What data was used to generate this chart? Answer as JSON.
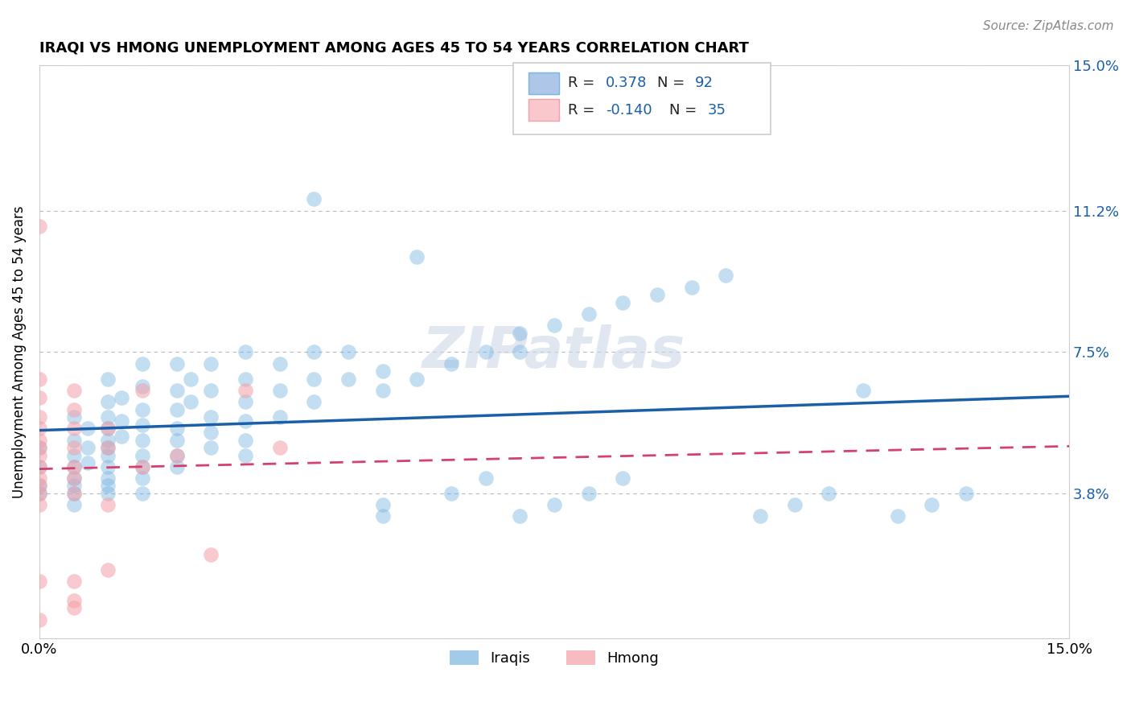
{
  "title": "IRAQI VS HMONG UNEMPLOYMENT AMONG AGES 45 TO 54 YEARS CORRELATION CHART",
  "source": "Source: ZipAtlas.com",
  "ylabel": "Unemployment Among Ages 45 to 54 years",
  "xlim": [
    0.0,
    0.15
  ],
  "ylim": [
    0.0,
    0.15
  ],
  "ytick_values": [
    0.038,
    0.075,
    0.112,
    0.15
  ],
  "ytick_labels": [
    "3.8%",
    "7.5%",
    "11.2%",
    "15.0%"
  ],
  "iraqis_color": "#7ab5e0",
  "hmong_color": "#f4a0a8",
  "iraqis_line_color": "#1a5fa8",
  "hmong_line_color": "#d44070",
  "iraqi_points": [
    [
      0.0,
      0.05
    ],
    [
      0.0,
      0.045
    ],
    [
      0.0,
      0.04
    ],
    [
      0.0,
      0.038
    ],
    [
      0.005,
      0.058
    ],
    [
      0.005,
      0.052
    ],
    [
      0.005,
      0.048
    ],
    [
      0.005,
      0.045
    ],
    [
      0.005,
      0.042
    ],
    [
      0.005,
      0.04
    ],
    [
      0.005,
      0.038
    ],
    [
      0.005,
      0.035
    ],
    [
      0.007,
      0.055
    ],
    [
      0.007,
      0.05
    ],
    [
      0.007,
      0.046
    ],
    [
      0.01,
      0.068
    ],
    [
      0.01,
      0.062
    ],
    [
      0.01,
      0.058
    ],
    [
      0.01,
      0.055
    ],
    [
      0.01,
      0.052
    ],
    [
      0.01,
      0.05
    ],
    [
      0.01,
      0.048
    ],
    [
      0.01,
      0.045
    ],
    [
      0.01,
      0.042
    ],
    [
      0.01,
      0.04
    ],
    [
      0.01,
      0.038
    ],
    [
      0.012,
      0.063
    ],
    [
      0.012,
      0.057
    ],
    [
      0.012,
      0.053
    ],
    [
      0.015,
      0.072
    ],
    [
      0.015,
      0.066
    ],
    [
      0.015,
      0.06
    ],
    [
      0.015,
      0.056
    ],
    [
      0.015,
      0.052
    ],
    [
      0.015,
      0.048
    ],
    [
      0.015,
      0.045
    ],
    [
      0.015,
      0.042
    ],
    [
      0.015,
      0.038
    ],
    [
      0.02,
      0.072
    ],
    [
      0.02,
      0.065
    ],
    [
      0.02,
      0.06
    ],
    [
      0.02,
      0.055
    ],
    [
      0.02,
      0.052
    ],
    [
      0.02,
      0.048
    ],
    [
      0.02,
      0.045
    ],
    [
      0.022,
      0.068
    ],
    [
      0.022,
      0.062
    ],
    [
      0.025,
      0.072
    ],
    [
      0.025,
      0.065
    ],
    [
      0.025,
      0.058
    ],
    [
      0.025,
      0.054
    ],
    [
      0.025,
      0.05
    ],
    [
      0.03,
      0.075
    ],
    [
      0.03,
      0.068
    ],
    [
      0.03,
      0.062
    ],
    [
      0.03,
      0.057
    ],
    [
      0.03,
      0.052
    ],
    [
      0.03,
      0.048
    ],
    [
      0.035,
      0.072
    ],
    [
      0.035,
      0.065
    ],
    [
      0.035,
      0.058
    ],
    [
      0.04,
      0.075
    ],
    [
      0.04,
      0.068
    ],
    [
      0.04,
      0.062
    ],
    [
      0.04,
      0.115
    ],
    [
      0.045,
      0.075
    ],
    [
      0.045,
      0.068
    ],
    [
      0.05,
      0.07
    ],
    [
      0.05,
      0.065
    ],
    [
      0.05,
      0.032
    ],
    [
      0.05,
      0.035
    ],
    [
      0.055,
      0.068
    ],
    [
      0.055,
      0.1
    ],
    [
      0.06,
      0.072
    ],
    [
      0.06,
      0.038
    ],
    [
      0.065,
      0.075
    ],
    [
      0.065,
      0.042
    ],
    [
      0.07,
      0.08
    ],
    [
      0.07,
      0.075
    ],
    [
      0.07,
      0.032
    ],
    [
      0.075,
      0.082
    ],
    [
      0.075,
      0.035
    ],
    [
      0.08,
      0.085
    ],
    [
      0.08,
      0.038
    ],
    [
      0.085,
      0.088
    ],
    [
      0.085,
      0.042
    ],
    [
      0.09,
      0.09
    ],
    [
      0.095,
      0.092
    ],
    [
      0.1,
      0.095
    ],
    [
      0.105,
      0.032
    ],
    [
      0.11,
      0.035
    ],
    [
      0.115,
      0.038
    ],
    [
      0.12,
      0.065
    ],
    [
      0.125,
      0.032
    ],
    [
      0.13,
      0.035
    ],
    [
      0.135,
      0.038
    ]
  ],
  "hmong_points": [
    [
      0.0,
      0.108
    ],
    [
      0.0,
      0.068
    ],
    [
      0.0,
      0.063
    ],
    [
      0.0,
      0.058
    ],
    [
      0.0,
      0.055
    ],
    [
      0.0,
      0.052
    ],
    [
      0.0,
      0.05
    ],
    [
      0.0,
      0.048
    ],
    [
      0.0,
      0.045
    ],
    [
      0.0,
      0.042
    ],
    [
      0.0,
      0.04
    ],
    [
      0.0,
      0.038
    ],
    [
      0.0,
      0.035
    ],
    [
      0.0,
      0.015
    ],
    [
      0.0,
      0.005
    ],
    [
      0.005,
      0.065
    ],
    [
      0.005,
      0.06
    ],
    [
      0.005,
      0.055
    ],
    [
      0.005,
      0.05
    ],
    [
      0.005,
      0.045
    ],
    [
      0.005,
      0.042
    ],
    [
      0.005,
      0.038
    ],
    [
      0.005,
      0.015
    ],
    [
      0.005,
      0.01
    ],
    [
      0.005,
      0.008
    ],
    [
      0.01,
      0.055
    ],
    [
      0.01,
      0.05
    ],
    [
      0.01,
      0.035
    ],
    [
      0.01,
      0.018
    ],
    [
      0.015,
      0.065
    ],
    [
      0.015,
      0.045
    ],
    [
      0.02,
      0.048
    ],
    [
      0.025,
      0.022
    ],
    [
      0.03,
      0.065
    ],
    [
      0.035,
      0.05
    ]
  ]
}
